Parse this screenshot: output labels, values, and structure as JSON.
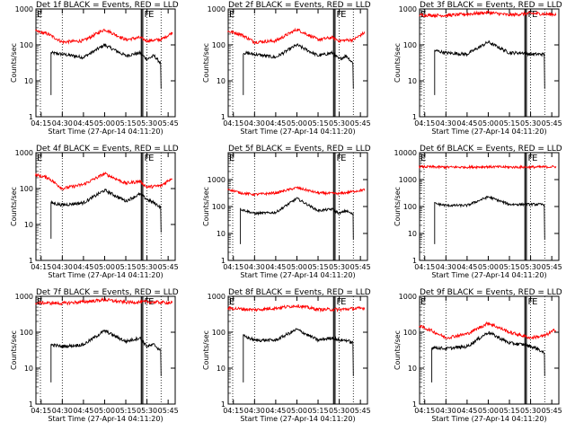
{
  "chart_data": [
    {
      "type": "line",
      "title": "Det 1f BLACK = Events, RED = LLD",
      "xlabel": "Start Time (27-Apr-14 04:11:20)",
      "ylabel": "Counts/sec",
      "x_ticks": [
        "04:15",
        "04:30",
        "04:45",
        "05:00",
        "05:15",
        "05:30",
        "05:45"
      ],
      "y_ticks": [
        "1",
        "10",
        "100",
        "1000"
      ],
      "ylim": [
        1,
        1000
      ],
      "yscale": "log",
      "flags": [
        "E",
        "F",
        "E"
      ],
      "series": [
        {
          "color": "#000000",
          "start_at": "04:22",
          "x": [
            "04:22",
            "04:30",
            "04:45",
            "05:00",
            "05:15",
            "05:25",
            "05:30",
            "05:35",
            "05:40"
          ],
          "values": [
            60,
            55,
            45,
            100,
            50,
            60,
            40,
            50,
            30
          ]
        },
        {
          "color": "#ff0000",
          "start_at": "04:11",
          "x": [
            "04:11",
            "04:20",
            "04:30",
            "04:45",
            "05:00",
            "05:15",
            "05:25",
            "05:30",
            "05:40",
            "05:48"
          ],
          "values": [
            240,
            200,
            120,
            130,
            270,
            140,
            160,
            130,
            140,
            220
          ]
        }
      ]
    },
    {
      "type": "line",
      "title": "Det 2f BLACK = Events, RED = LLD",
      "xlabel": "Start Time (27-Apr-14 04:11:20)",
      "ylabel": "Counts/sec",
      "x_ticks": [
        "04:15",
        "04:30",
        "04:45",
        "05:00",
        "05:15",
        "05:30",
        "05:45"
      ],
      "y_ticks": [
        "1",
        "10",
        "100",
        "1000"
      ],
      "ylim": [
        1,
        1000
      ],
      "yscale": "log",
      "flags": [
        "E",
        "F",
        "E"
      ],
      "series": [
        {
          "color": "#000000",
          "start_at": "04:22",
          "x": [
            "04:22",
            "04:30",
            "04:45",
            "05:00",
            "05:15",
            "05:25",
            "05:30",
            "05:35",
            "05:40"
          ],
          "values": [
            60,
            55,
            45,
            100,
            50,
            60,
            40,
            50,
            30
          ]
        },
        {
          "color": "#ff0000",
          "start_at": "04:11",
          "x": [
            "04:11",
            "04:20",
            "04:30",
            "04:45",
            "05:00",
            "05:15",
            "05:25",
            "05:30",
            "05:40",
            "05:48"
          ],
          "values": [
            240,
            200,
            120,
            130,
            270,
            140,
            160,
            130,
            140,
            220
          ]
        }
      ]
    },
    {
      "type": "line",
      "title": "Det 3f BLACK = Events, RED = LLD",
      "xlabel": "Start Time (27-Apr-14 04:11:20)",
      "ylabel": "Counts/sec",
      "x_ticks": [
        "04:15",
        "04:30",
        "04:45",
        "05:00",
        "05:15",
        "05:30",
        "05:45"
      ],
      "y_ticks": [
        "1",
        "10",
        "100",
        "1000"
      ],
      "ylim": [
        1,
        1000
      ],
      "yscale": "log",
      "flags": [
        "E",
        "F",
        "E"
      ],
      "series": [
        {
          "color": "#000000",
          "start_at": "04:22",
          "x": [
            "04:22",
            "04:30",
            "04:45",
            "05:00",
            "05:15",
            "05:25",
            "05:30",
            "05:40"
          ],
          "values": [
            70,
            60,
            55,
            120,
            60,
            60,
            55,
            55
          ]
        },
        {
          "color": "#ff0000",
          "start_at": "04:11",
          "x": [
            "04:11",
            "04:30",
            "04:45",
            "05:00",
            "05:15",
            "05:30",
            "05:48"
          ],
          "values": [
            680,
            660,
            720,
            800,
            680,
            760,
            700
          ]
        }
      ]
    },
    {
      "type": "line",
      "title": "Det 4f BLACK = Events, RED = LLD",
      "xlabel": "Start Time (27-Apr-14 04:11:20)",
      "ylabel": "Counts/sec",
      "x_ticks": [
        "04:15",
        "04:30",
        "04:45",
        "05:00",
        "05:15",
        "05:30",
        "05:45"
      ],
      "y_ticks": [
        "1",
        "10",
        "100",
        "1000"
      ],
      "ylim": [
        1,
        1000
      ],
      "yscale": "log",
      "flags": [
        "E",
        "F",
        "E"
      ],
      "series": [
        {
          "color": "#000000",
          "start_at": "04:22",
          "x": [
            "04:22",
            "04:30",
            "04:45",
            "05:00",
            "05:15",
            "05:25",
            "05:30",
            "05:35",
            "05:40"
          ],
          "values": [
            40,
            35,
            40,
            90,
            45,
            70,
            50,
            40,
            30
          ]
        },
        {
          "color": "#ff0000",
          "start_at": "04:11",
          "x": [
            "04:11",
            "04:20",
            "04:30",
            "04:45",
            "05:00",
            "05:15",
            "05:25",
            "05:30",
            "05:40",
            "05:48"
          ],
          "values": [
            240,
            200,
            100,
            130,
            260,
            140,
            160,
            110,
            120,
            200
          ]
        }
      ]
    },
    {
      "type": "line",
      "title": "Det 5f BLACK = Events, RED = LLD",
      "xlabel": "Start Time (27-Apr-14 04:11:20)",
      "ylabel": "Counts/sec",
      "x_ticks": [
        "04:15",
        "04:30",
        "04:45",
        "05:00",
        "05:15",
        "05:30",
        "05:45"
      ],
      "y_ticks": [
        "1",
        "10",
        "100",
        "1000"
      ],
      "ylim": [
        1,
        10000
      ],
      "yscale": "log",
      "flags": [
        "E",
        "F",
        "E"
      ],
      "series": [
        {
          "color": "#000000",
          "start_at": "04:20",
          "x": [
            "04:20",
            "04:30",
            "04:45",
            "05:00",
            "05:15",
            "05:25",
            "05:30",
            "05:35",
            "05:40"
          ],
          "values": [
            80,
            55,
            60,
            200,
            70,
            80,
            55,
            70,
            50
          ]
        },
        {
          "color": "#ff0000",
          "start_at": "04:11",
          "x": [
            "04:11",
            "04:20",
            "04:30",
            "04:45",
            "05:00",
            "05:15",
            "05:30",
            "05:48"
          ],
          "values": [
            450,
            320,
            280,
            320,
            500,
            320,
            300,
            420
          ]
        }
      ]
    },
    {
      "type": "line",
      "title": "Det 6f BLACK = Events, RED = LLD",
      "xlabel": "Start Time (27-Apr-14 04:11:20)",
      "ylabel": "Counts/sec",
      "x_ticks": [
        "04:15",
        "04:30",
        "04:45",
        "05:00",
        "05:15",
        "05:30",
        "05:45"
      ],
      "y_ticks": [
        "1",
        "10",
        "100",
        "1000",
        "10000"
      ],
      "ylim": [
        1,
        10000
      ],
      "yscale": "log",
      "flags": [
        "E",
        "F",
        "E"
      ],
      "series": [
        {
          "color": "#000000",
          "start_at": "04:22",
          "x": [
            "04:22",
            "04:30",
            "04:45",
            "05:00",
            "05:15",
            "05:25",
            "05:30",
            "05:40"
          ],
          "values": [
            130,
            110,
            110,
            230,
            120,
            120,
            120,
            120
          ]
        },
        {
          "color": "#ff0000",
          "start_at": "04:11",
          "x": [
            "04:11",
            "04:30",
            "04:45",
            "05:00",
            "05:15",
            "05:30",
            "05:48"
          ],
          "values": [
            3000,
            2900,
            2900,
            3000,
            2900,
            2900,
            3000
          ]
        }
      ]
    },
    {
      "type": "line",
      "title": "Det 7f BLACK = Events, RED = LLD",
      "xlabel": "Start Time (27-Apr-14 04:11:20)",
      "ylabel": "Counts/sec",
      "x_ticks": [
        "04:15",
        "04:30",
        "04:45",
        "05:00",
        "05:15",
        "05:30",
        "05:45"
      ],
      "y_ticks": [
        "1",
        "10",
        "100",
        "1000"
      ],
      "ylim": [
        1,
        1000
      ],
      "yscale": "log",
      "flags": [
        "E",
        "F",
        "E"
      ],
      "series": [
        {
          "color": "#000000",
          "start_at": "04:22",
          "x": [
            "04:22",
            "04:30",
            "04:45",
            "05:00",
            "05:15",
            "05:25",
            "05:30",
            "05:35",
            "05:40"
          ],
          "values": [
            45,
            40,
            45,
            110,
            55,
            70,
            40,
            45,
            30
          ]
        },
        {
          "color": "#ff0000",
          "start_at": "04:11",
          "x": [
            "04:11",
            "04:30",
            "04:45",
            "05:00",
            "05:15",
            "05:30",
            "05:48"
          ],
          "values": [
            660,
            640,
            700,
            800,
            680,
            700,
            660
          ]
        }
      ]
    },
    {
      "type": "line",
      "title": "Det 8f BLACK = Events, RED = LLD",
      "xlabel": "Start Time (27-Apr-14 04:11:20)",
      "ylabel": "Counts/sec",
      "x_ticks": [
        "04:15",
        "04:30",
        "04:45",
        "05:00",
        "05:15",
        "05:30",
        "05:45"
      ],
      "y_ticks": [
        "1",
        "10",
        "100",
        "1000"
      ],
      "ylim": [
        1,
        1000
      ],
      "yscale": "log",
      "flags": [
        "E",
        "F",
        "E"
      ],
      "series": [
        {
          "color": "#000000",
          "start_at": "04:22",
          "x": [
            "04:22",
            "04:30",
            "04:45",
            "05:00",
            "05:15",
            "05:25",
            "05:30",
            "05:35",
            "05:40"
          ],
          "values": [
            80,
            60,
            60,
            120,
            60,
            70,
            60,
            60,
            50
          ]
        },
        {
          "color": "#ff0000",
          "start_at": "04:11",
          "x": [
            "04:11",
            "04:30",
            "04:45",
            "05:00",
            "05:15",
            "05:30",
            "05:48"
          ],
          "values": [
            470,
            420,
            470,
            550,
            430,
            430,
            470
          ]
        }
      ]
    },
    {
      "type": "line",
      "title": "Det 9f BLACK = Events, RED = LLD",
      "xlabel": "Start Time (27-Apr-14 04:11:20)",
      "ylabel": "Counts/sec",
      "x_ticks": [
        "04:15",
        "04:30",
        "04:45",
        "05:00",
        "05:15",
        "05:30",
        "05:45"
      ],
      "y_ticks": [
        "1",
        "10",
        "100",
        "1000"
      ],
      "ylim": [
        1,
        1000
      ],
      "yscale": "log",
      "flags": [
        "E",
        "F",
        "E"
      ],
      "series": [
        {
          "color": "#000000",
          "start_at": "04:20",
          "x": [
            "04:20",
            "04:30",
            "04:45",
            "05:00",
            "05:15",
            "05:25",
            "05:30",
            "05:35",
            "05:40"
          ],
          "values": [
            38,
            35,
            40,
            100,
            50,
            45,
            40,
            35,
            25
          ]
        },
        {
          "color": "#ff0000",
          "start_at": "04:11",
          "x": [
            "04:11",
            "04:20",
            "04:30",
            "04:45",
            "05:00",
            "05:15",
            "05:30",
            "05:40",
            "05:48"
          ],
          "values": [
            150,
            110,
            70,
            90,
            180,
            100,
            70,
            80,
            120
          ]
        }
      ]
    }
  ]
}
